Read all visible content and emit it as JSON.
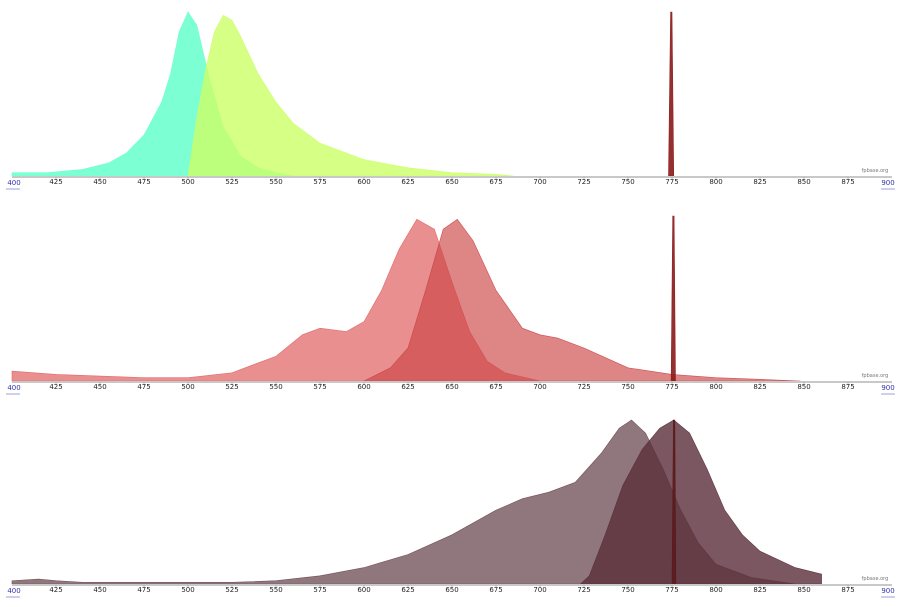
{
  "watermark": "fpbase.org",
  "chart_data": [
    {
      "type": "area",
      "x_range": [
        400,
        900
      ],
      "x_ticks": [
        425,
        450,
        475,
        500,
        525,
        550,
        575,
        600,
        625,
        650,
        675,
        700,
        725,
        750,
        775,
        800,
        825,
        850,
        875
      ],
      "edge_labels": [
        "400",
        "900"
      ],
      "series": [
        {
          "color": "#66ffcc",
          "opacity": 0.85,
          "points": [
            [
              400,
              0.02
            ],
            [
              420,
              0.02
            ],
            [
              440,
              0.04
            ],
            [
              455,
              0.08
            ],
            [
              465,
              0.14
            ],
            [
              475,
              0.25
            ],
            [
              485,
              0.45
            ],
            [
              490,
              0.62
            ],
            [
              495,
              0.88
            ],
            [
              500,
              1.0
            ],
            [
              505,
              0.92
            ],
            [
              512,
              0.6
            ],
            [
              520,
              0.3
            ],
            [
              530,
              0.12
            ],
            [
              540,
              0.05
            ],
            [
              550,
              0.02
            ],
            [
              560,
              0
            ]
          ]
        },
        {
          "color": "#ccff66",
          "opacity": 0.8,
          "points": [
            [
              500,
              0
            ],
            [
              505,
              0.35
            ],
            [
              510,
              0.65
            ],
            [
              515,
              0.88
            ],
            [
              520,
              0.98
            ],
            [
              525,
              0.95
            ],
            [
              530,
              0.85
            ],
            [
              540,
              0.62
            ],
            [
              550,
              0.45
            ],
            [
              560,
              0.32
            ],
            [
              575,
              0.2
            ],
            [
              600,
              0.1
            ],
            [
              625,
              0.05
            ],
            [
              650,
              0.02
            ],
            [
              675,
              0.01
            ],
            [
              685,
              0
            ]
          ]
        },
        {
          "color": "#8b1a1a",
          "opacity": 0.9,
          "points": [
            [
              773,
              0
            ],
            [
              774.2,
              1.0
            ],
            [
              775.0,
              1.0
            ],
            [
              776.0,
              0
            ]
          ]
        }
      ]
    },
    {
      "type": "area",
      "x_range": [
        400,
        900
      ],
      "x_ticks": [
        425,
        450,
        475,
        500,
        525,
        550,
        575,
        600,
        625,
        650,
        675,
        700,
        725,
        750,
        775,
        800,
        825,
        850,
        875
      ],
      "edge_labels": [
        "400",
        "900"
      ],
      "series": [
        {
          "color": "#e06060",
          "opacity": 0.7,
          "points": [
            [
              400,
              0.06
            ],
            [
              425,
              0.04
            ],
            [
              450,
              0.03
            ],
            [
              475,
              0.02
            ],
            [
              500,
              0.02
            ],
            [
              525,
              0.05
            ],
            [
              550,
              0.15
            ],
            [
              565,
              0.28
            ],
            [
              575,
              0.32
            ],
            [
              590,
              0.3
            ],
            [
              600,
              0.36
            ],
            [
              610,
              0.55
            ],
            [
              620,
              0.8
            ],
            [
              630,
              0.98
            ],
            [
              640,
              0.92
            ],
            [
              650,
              0.6
            ],
            [
              660,
              0.3
            ],
            [
              670,
              0.12
            ],
            [
              680,
              0.05
            ],
            [
              700,
              0
            ]
          ]
        },
        {
          "color": "#cc4444",
          "opacity": 0.65,
          "points": [
            [
              600,
              0
            ],
            [
              615,
              0.08
            ],
            [
              625,
              0.2
            ],
            [
              635,
              0.55
            ],
            [
              645,
              0.92
            ],
            [
              653,
              0.98
            ],
            [
              662,
              0.85
            ],
            [
              675,
              0.55
            ],
            [
              690,
              0.32
            ],
            [
              700,
              0.28
            ],
            [
              710,
              0.26
            ],
            [
              725,
              0.2
            ],
            [
              750,
              0.08
            ],
            [
              775,
              0.04
            ],
            [
              800,
              0.02
            ],
            [
              825,
              0.01
            ],
            [
              848,
              0
            ]
          ]
        },
        {
          "color": "#8b1a1a",
          "opacity": 0.9,
          "points": [
            [
              774.5,
              0
            ],
            [
              775.4,
              1.0
            ],
            [
              776.2,
              1.0
            ],
            [
              777.0,
              0
            ]
          ]
        }
      ]
    },
    {
      "type": "area",
      "x_range": [
        400,
        900
      ],
      "x_ticks": [
        425,
        450,
        475,
        500,
        525,
        550,
        575,
        600,
        625,
        650,
        675,
        700,
        725,
        750,
        775,
        800,
        825,
        850,
        875
      ],
      "edge_labels": [
        "400",
        "900"
      ],
      "series": [
        {
          "color": "#6b4a52",
          "opacity": 0.75,
          "points": [
            [
              400,
              0.02
            ],
            [
              415,
              0.03
            ],
            [
              425,
              0.02
            ],
            [
              440,
              0.01
            ],
            [
              475,
              0.01
            ],
            [
              500,
              0.01
            ],
            [
              525,
              0.01
            ],
            [
              550,
              0.02
            ],
            [
              575,
              0.05
            ],
            [
              600,
              0.1
            ],
            [
              625,
              0.18
            ],
            [
              650,
              0.3
            ],
            [
              675,
              0.45
            ],
            [
              690,
              0.52
            ],
            [
              705,
              0.56
            ],
            [
              720,
              0.62
            ],
            [
              735,
              0.8
            ],
            [
              745,
              0.95
            ],
            [
              752,
              1.0
            ],
            [
              760,
              0.92
            ],
            [
              770,
              0.7
            ],
            [
              780,
              0.45
            ],
            [
              790,
              0.25
            ],
            [
              800,
              0.12
            ],
            [
              820,
              0.04
            ],
            [
              845,
              0
            ]
          ]
        },
        {
          "color": "#5a2e3a",
          "opacity": 0.8,
          "points": [
            [
              723,
              0
            ],
            [
              728,
              0.05
            ],
            [
              737,
              0.3
            ],
            [
              747,
              0.6
            ],
            [
              758,
              0.82
            ],
            [
              768,
              0.95
            ],
            [
              776,
              1.0
            ],
            [
              785,
              0.92
            ],
            [
              795,
              0.7
            ],
            [
              805,
              0.45
            ],
            [
              815,
              0.3
            ],
            [
              825,
              0.2
            ],
            [
              835,
              0.15
            ],
            [
              845,
              0.1
            ],
            [
              860,
              0.06
            ],
            [
              860,
              0
            ]
          ]
        },
        {
          "color": "#5a1a1a",
          "opacity": 0.9,
          "points": [
            [
              775,
              0
            ],
            [
              775.8,
              1.0
            ],
            [
              776.6,
              1.0
            ],
            [
              777.2,
              0
            ]
          ]
        }
      ]
    }
  ]
}
